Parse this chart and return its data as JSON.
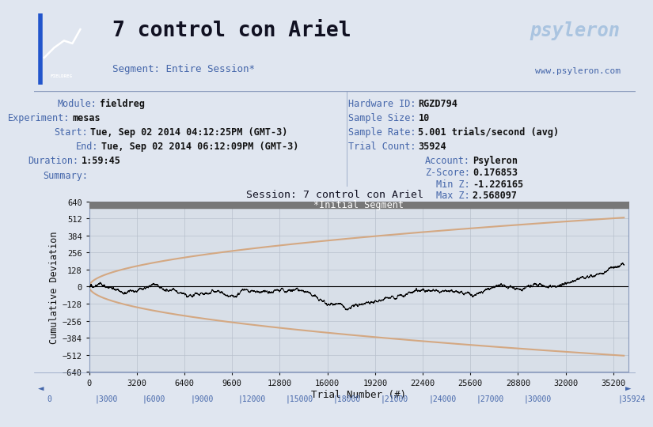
{
  "title_main": "7 control con Ariel",
  "segment_label": "Segment: Entire Session*",
  "psyleron_url": "www.psyleron.com",
  "module": "fieldreg",
  "experiment": "mesas",
  "start": "Tue, Sep 02 2014 04:12:25PM (GMT-3)",
  "end": "Tue, Sep 02 2014 06:12:09PM (GMT-3)",
  "duration": "1:59:45",
  "hardware_id": "RGZD794",
  "sample_size": "10",
  "sample_rate": "5.001 trials/second (avg)",
  "trial_count": "35924",
  "account": "Psyleron",
  "z_score": "0.176853",
  "min_z": "-1.226165",
  "max_z": "2.568097",
  "graph_title": "Session: 7 control con Ariel",
  "segment_bar_label": "*Initial Segment",
  "xlabel": "Trial Number (#)",
  "ylabel": "Cumulative Deviation",
  "xlim": [
    0,
    36200
  ],
  "ylim": [
    -640,
    640
  ],
  "yticks": [
    -640,
    -512,
    -384,
    -256,
    -128,
    0,
    128,
    256,
    384,
    512,
    640
  ],
  "xticks_major": [
    0,
    3200,
    6400,
    9600,
    12800,
    16000,
    19200,
    22400,
    25600,
    28800,
    32000,
    35200
  ],
  "bg_header": "#c8d0e0",
  "bg_info": "#e0e6f0",
  "bg_plot": "#d8dfe8",
  "line_color": "#000000",
  "envelope_color": "#d4a882",
  "grid_color": "#b8c0cc",
  "header_text_color": "#111122",
  "info_label_color": "#4466aa",
  "info_value_color": "#111111",
  "trial_max": 35924,
  "envelope_C": 2.74,
  "scroll_ticks": [
    0,
    3000,
    6000,
    9000,
    12000,
    15000,
    18000,
    21000,
    24000,
    27000,
    30000,
    35924
  ]
}
